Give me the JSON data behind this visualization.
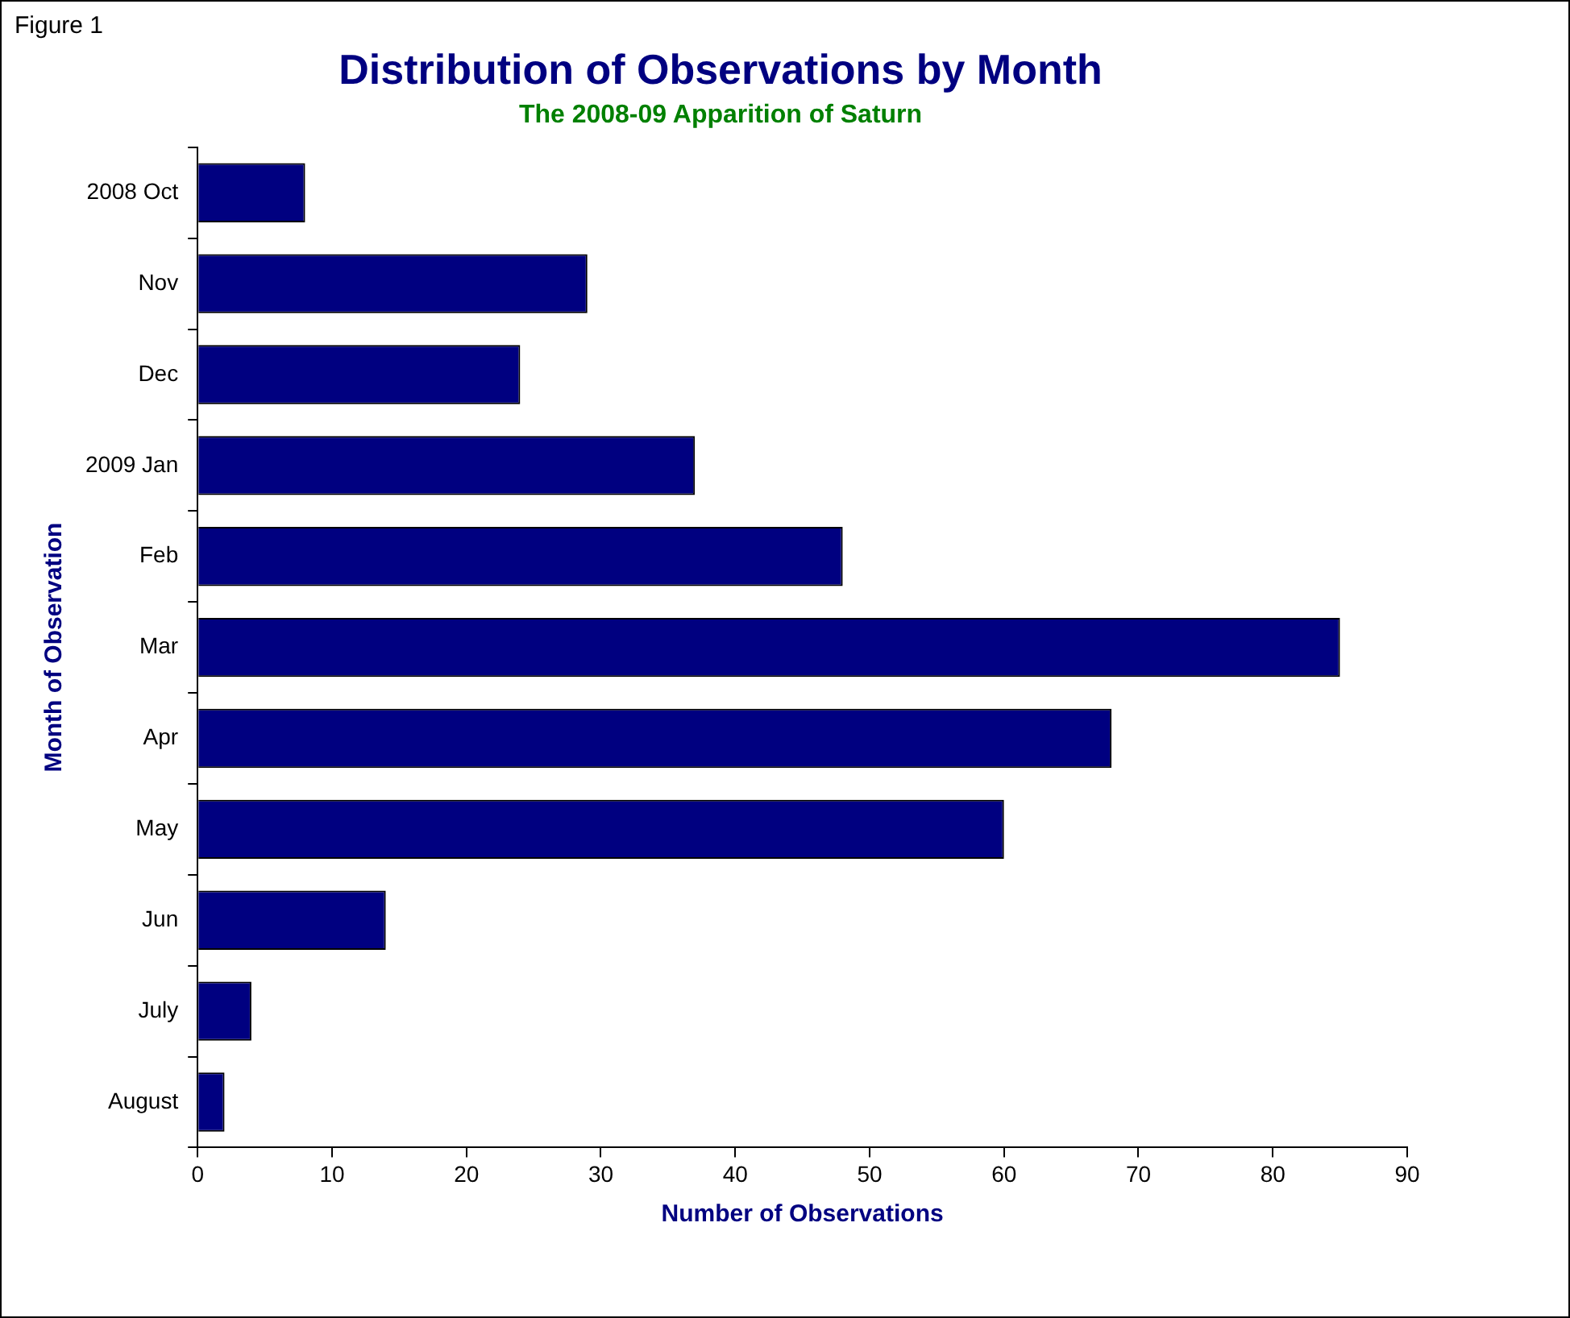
{
  "chart_data": {
    "type": "bar",
    "orientation": "horizontal",
    "title": "Distribution of Observations by Month",
    "subtitle": "The 2008-09 Apparition of Saturn",
    "xlabel": "Number of Observations",
    "ylabel": "Month of Observation",
    "annotations": [
      "Figure 1"
    ],
    "categories": [
      "2008 Oct",
      "Nov",
      "Dec",
      "2009 Jan",
      "Feb",
      "Mar",
      "Apr",
      "May",
      "Jun",
      "July",
      "August"
    ],
    "values": [
      8,
      29,
      24,
      37,
      48,
      85,
      68,
      60,
      14,
      4,
      2
    ],
    "color": "#000080",
    "xlim": [
      0,
      90
    ],
    "xticks": [
      0,
      10,
      20,
      30,
      40,
      50,
      60,
      70,
      80,
      90
    ],
    "grid": false,
    "legend": false
  }
}
